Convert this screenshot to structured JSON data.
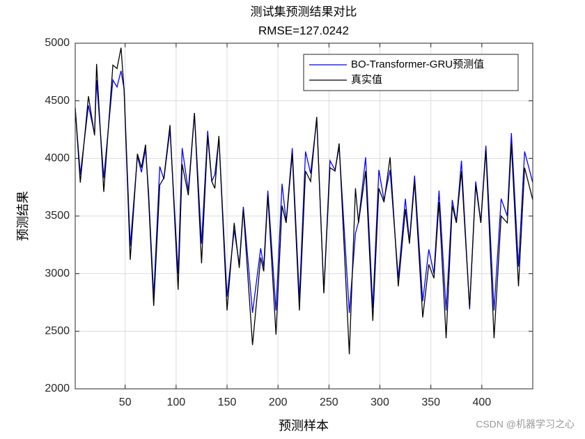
{
  "chart_data": {
    "type": "line",
    "title": "测试集预测结果对比",
    "subtitle": "RMSE=127.0242",
    "xlabel": "预测样本",
    "ylabel": "预测结果",
    "watermark": "CSDN @机器学习之心",
    "x": [
      1,
      6,
      14,
      20,
      22,
      29,
      38,
      42,
      46,
      49,
      55,
      62,
      66,
      70,
      73,
      78,
      84,
      88,
      94,
      102,
      106,
      112,
      118,
      125,
      131,
      135,
      138,
      142,
      150,
      157,
      162,
      166,
      175,
      183,
      186,
      190,
      198,
      204,
      208,
      214,
      221,
      227,
      232,
      238,
      245,
      251,
      256,
      260,
      270,
      276,
      279,
      286,
      293,
      299,
      304,
      310,
      318,
      325,
      329,
      334,
      342,
      348,
      353,
      358,
      365,
      371,
      375,
      380,
      388,
      394,
      399,
      404,
      412,
      419,
      425,
      429,
      436,
      442,
      450
    ],
    "series": [
      {
        "name": "BO-Transformer-GRU预测值",
        "color": "#0000ff",
        "values": [
          4430,
          3860,
          4460,
          4210,
          4680,
          3830,
          4680,
          4620,
          4760,
          4600,
          3240,
          4020,
          3880,
          4080,
          3700,
          2800,
          3930,
          3820,
          4250,
          3000,
          4090,
          3720,
          4390,
          3260,
          4240,
          3800,
          3860,
          4180,
          2800,
          3380,
          3080,
          3580,
          2660,
          3220,
          3060,
          3720,
          2680,
          3780,
          3450,
          4090,
          2780,
          4060,
          3870,
          4340,
          2840,
          3980,
          3900,
          4100,
          2660,
          3350,
          3450,
          4010,
          2700,
          3900,
          3640,
          3900,
          2960,
          3650,
          3280,
          3850,
          2760,
          3210,
          3000,
          3720,
          2680,
          3640,
          3450,
          3980,
          2690,
          3800,
          3450,
          4110,
          2680,
          3650,
          3500,
          4220,
          3060,
          4060,
          3790
        ]
      },
      {
        "name": "真实值",
        "color": "#000000",
        "values": [
          4440,
          3790,
          4540,
          4200,
          4820,
          3710,
          4810,
          4780,
          4960,
          4590,
          3120,
          4040,
          3920,
          4120,
          3650,
          2720,
          3770,
          3830,
          4290,
          2860,
          3950,
          3680,
          4395,
          3090,
          4195,
          3800,
          3740,
          4195,
          2680,
          3440,
          3050,
          3560,
          2380,
          3140,
          3020,
          3680,
          2470,
          3590,
          3440,
          4040,
          2680,
          3890,
          3800,
          4360,
          2830,
          3920,
          3890,
          4130,
          2300,
          3740,
          3440,
          3890,
          2590,
          3740,
          3620,
          4010,
          2890,
          3560,
          3260,
          3800,
          2620,
          3080,
          2960,
          3620,
          2440,
          3590,
          3440,
          3890,
          2710,
          3770,
          3440,
          4070,
          2440,
          3500,
          3440,
          4130,
          2890,
          3920,
          3640
        ]
      }
    ],
    "xlim": [
      1,
      450
    ],
    "ylim": [
      2000,
      5000
    ],
    "xticks": [
      50,
      100,
      150,
      200,
      250,
      300,
      350,
      400
    ],
    "yticks": [
      2000,
      2500,
      3000,
      3500,
      4000,
      4500,
      5000
    ],
    "grid": true,
    "legend": "top-right"
  }
}
